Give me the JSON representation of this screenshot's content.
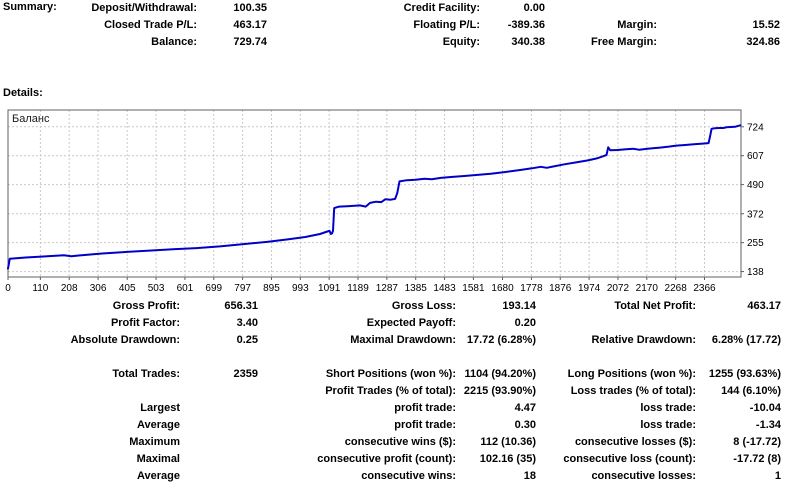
{
  "summary": {
    "title": "Summary:",
    "rows": [
      [
        "Deposit/Withdrawal:",
        "100.35",
        "Credit Facility:",
        "0.00",
        "",
        ""
      ],
      [
        "Closed Trade P/L:",
        "463.17",
        "Floating P/L:",
        "-389.36",
        "Margin:",
        "15.52"
      ],
      [
        "Balance:",
        "729.74",
        "Equity:",
        "340.38",
        "Free Margin:",
        "324.86"
      ]
    ]
  },
  "details": {
    "title": "Details:",
    "rows": [
      [
        "Gross Profit:",
        "656.31",
        "Gross Loss:",
        "193.14",
        "Total Net Profit:",
        "463.17"
      ],
      [
        "Profit Factor:",
        "3.40",
        "Expected Payoff:",
        "0.20",
        "",
        ""
      ],
      [
        "Absolute Drawdown:",
        "0.25",
        "Maximal Drawdown:",
        "17.72 (6.28%)",
        "Relative Drawdown:",
        "6.28% (17.72)"
      ],
      [
        "",
        "",
        "",
        "",
        "",
        ""
      ],
      [
        "Total Trades:",
        "2359",
        "Short Positions (won %):",
        "1104 (94.20%)",
        "Long Positions (won %):",
        "1255 (93.63%)"
      ],
      [
        "",
        "",
        "Profit Trades (% of total):",
        "2215 (93.90%)",
        "Loss trades (% of total):",
        "144 (6.10%)"
      ],
      [
        "Largest",
        "",
        "profit trade:",
        "4.47",
        "loss trade:",
        "-10.04"
      ],
      [
        "Average",
        "",
        "profit trade:",
        "0.30",
        "loss trade:",
        "-1.34"
      ],
      [
        "Maximum",
        "",
        "consecutive wins ($):",
        "112 (10.36)",
        "consecutive losses ($):",
        "8 (-17.72)"
      ],
      [
        "Maximal",
        "",
        "consecutive profit (count):",
        "102.16 (35)",
        "consecutive loss (count):",
        "-17.72 (8)"
      ],
      [
        "Average",
        "",
        "consecutive wins:",
        "18",
        "consecutive losses:",
        "1"
      ]
    ]
  },
  "chart_data": {
    "type": "line",
    "legend": "Баланс",
    "x_ticks": [
      0,
      110,
      208,
      306,
      405,
      503,
      601,
      699,
      797,
      895,
      993,
      1091,
      1189,
      1287,
      1385,
      1483,
      1581,
      1680,
      1778,
      1876,
      1974,
      2072,
      2170,
      2268,
      2366
    ],
    "y_ticks": [
      138,
      255,
      372,
      490,
      607,
      724
    ],
    "xlim": [
      0,
      2490
    ],
    "ylim": [
      116,
      792
    ],
    "grid": true,
    "grid_color": "#c9c9c9",
    "axis_color": "#606060",
    "series": [
      {
        "name": "Баланс",
        "color": "#0000C8",
        "points": [
          [
            0,
            150
          ],
          [
            6,
            190
          ],
          [
            60,
            195
          ],
          [
            120,
            199
          ],
          [
            190,
            204
          ],
          [
            215,
            200
          ],
          [
            240,
            203
          ],
          [
            320,
            211
          ],
          [
            400,
            217
          ],
          [
            480,
            223
          ],
          [
            560,
            228
          ],
          [
            640,
            233
          ],
          [
            720,
            240
          ],
          [
            800,
            249
          ],
          [
            880,
            258
          ],
          [
            950,
            268
          ],
          [
            1010,
            278
          ],
          [
            1060,
            290
          ],
          [
            1085,
            300
          ],
          [
            1092,
            303
          ],
          [
            1097,
            290
          ],
          [
            1101,
            293
          ],
          [
            1104,
            303
          ],
          [
            1108,
            395
          ],
          [
            1125,
            401
          ],
          [
            1160,
            403
          ],
          [
            1195,
            406
          ],
          [
            1215,
            401
          ],
          [
            1230,
            416
          ],
          [
            1250,
            421
          ],
          [
            1268,
            419
          ],
          [
            1282,
            431
          ],
          [
            1300,
            429
          ],
          [
            1315,
            432
          ],
          [
            1322,
            455
          ],
          [
            1330,
            503
          ],
          [
            1355,
            508
          ],
          [
            1385,
            510
          ],
          [
            1415,
            514
          ],
          [
            1440,
            512
          ],
          [
            1470,
            517
          ],
          [
            1510,
            521
          ],
          [
            1550,
            525
          ],
          [
            1590,
            529
          ],
          [
            1640,
            534
          ],
          [
            1690,
            541
          ],
          [
            1740,
            549
          ],
          [
            1780,
            556
          ],
          [
            1810,
            562
          ],
          [
            1830,
            558
          ],
          [
            1850,
            563
          ],
          [
            1890,
            572
          ],
          [
            1930,
            580
          ],
          [
            1970,
            588
          ],
          [
            2000,
            596
          ],
          [
            2020,
            604
          ],
          [
            2033,
            610
          ],
          [
            2039,
            641
          ],
          [
            2046,
            629
          ],
          [
            2070,
            630
          ],
          [
            2100,
            633
          ],
          [
            2125,
            635
          ],
          [
            2145,
            631
          ],
          [
            2165,
            634
          ],
          [
            2190,
            637
          ],
          [
            2215,
            640
          ],
          [
            2245,
            644
          ],
          [
            2270,
            648
          ],
          [
            2295,
            650
          ],
          [
            2330,
            653
          ],
          [
            2360,
            656
          ],
          [
            2380,
            658
          ],
          [
            2386,
            692
          ],
          [
            2390,
            716
          ],
          [
            2400,
            718
          ],
          [
            2415,
            719
          ],
          [
            2430,
            719
          ],
          [
            2440,
            722
          ],
          [
            2455,
            723
          ],
          [
            2470,
            724
          ],
          [
            2478,
            727
          ],
          [
            2488,
            730
          ]
        ]
      }
    ]
  }
}
